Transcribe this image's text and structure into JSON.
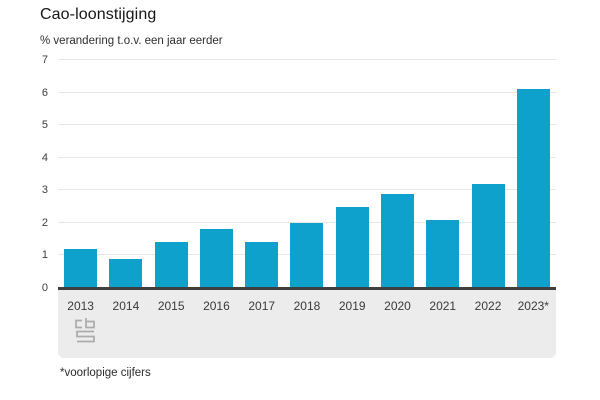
{
  "page": {
    "background": "#ffffff"
  },
  "chart_data": {
    "type": "bar",
    "title": "Cao-loonstijging",
    "subtitle": "% verandering t.o.v. een jaar eerder",
    "categories": [
      "2013",
      "2014",
      "2015",
      "2016",
      "2017",
      "2018",
      "2019",
      "2020",
      "2021",
      "2022",
      "2023*"
    ],
    "values": [
      1.2,
      0.9,
      1.4,
      1.8,
      1.4,
      2.0,
      2.5,
      2.9,
      2.1,
      3.2,
      6.1
    ],
    "ylim": [
      0,
      7
    ],
    "yticks": [
      0,
      1,
      2,
      3,
      4,
      5,
      6,
      7
    ],
    "grid": true,
    "legend_position": "none",
    "footnote": "*voorlopige cijfers",
    "logo_icon": "cbs-logo",
    "colors": {
      "bar": "#0ea1cb",
      "gridline": "#e6e6e6",
      "axis_line": "#3e3e3e",
      "band_background": "#ececec",
      "logo": "#ababab",
      "title_text": "#161616"
    }
  }
}
